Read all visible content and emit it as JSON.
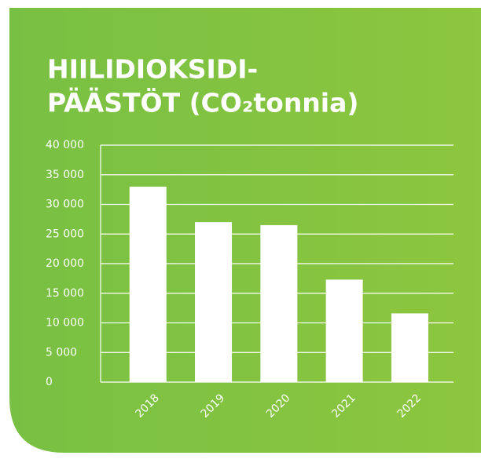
{
  "chart_data": {
    "type": "bar",
    "title": [
      "HIILIDIOKSIDI-",
      "PÄÄSTÖT (CO₂tonnia)"
    ],
    "categories": [
      "2018",
      "2019",
      "2020",
      "2021",
      "2022"
    ],
    "values": [
      33000,
      27000,
      26500,
      17300,
      11600
    ],
    "color": "#ffffff",
    "ylim": [
      0,
      40000
    ],
    "yticks": [
      0,
      {
        "value": 5000,
        "label": "5 000"
      },
      {
        "value": 10000,
        "label": "10 000"
      },
      {
        "value": 15000,
        "label": "15 000"
      },
      {
        "value": 20000,
        "label": "20 000"
      },
      {
        "value": 25000,
        "label": "25 000"
      },
      {
        "value": 30000,
        "label": "30 000"
      },
      {
        "value": 35000,
        "label": "35 000"
      },
      {
        "value": 40000,
        "label": "40 000"
      }
    ],
    "grid": true
  }
}
